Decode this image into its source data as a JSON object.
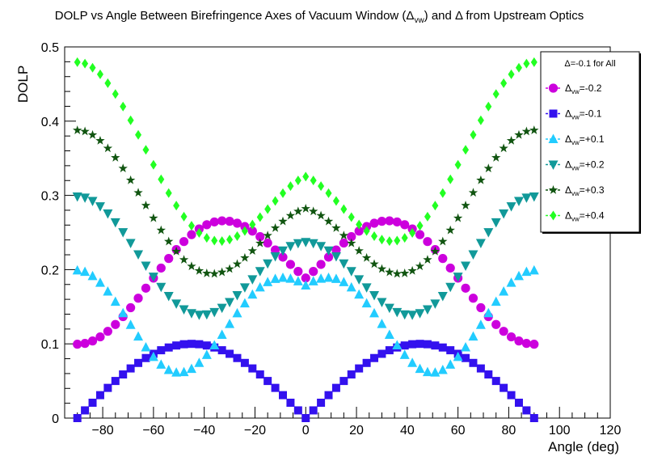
{
  "chart_data": {
    "type": "scatter",
    "title_parts": [
      "DOLP vs Angle Between Birefringence Axes of Vacuum Window (Δ",
      "vw",
      ") and Δ from Upstream Optics"
    ],
    "xlabel": "Angle (deg)",
    "ylabel": "DOLP",
    "xlim": [
      -95,
      120
    ],
    "ylim": [
      0,
      0.5
    ],
    "xticks": [
      -80,
      -60,
      -40,
      -20,
      0,
      20,
      40,
      60,
      80,
      100,
      120
    ],
    "yticks": [
      0,
      0.1,
      0.2,
      0.3,
      0.4,
      0.5
    ],
    "ytick_labels": [
      "0",
      "0.1",
      "0.2",
      "0.3",
      "0.4",
      "0.5"
    ],
    "grid": false,
    "legend_position": "top-right",
    "legend_header": "Δ=-0.1 for All",
    "x_range": {
      "start": -90,
      "end": 90,
      "step": 3
    },
    "series": [
      {
        "name_prefix": "Δ",
        "name_sub": "vw",
        "name_suffix": "=-0.2",
        "color": "#cc00dd",
        "marker": "circle",
        "values": [
          0.0995,
          0.1006,
          0.1039,
          0.1094,
          0.1169,
          0.1261,
          0.1367,
          0.1487,
          0.1615,
          0.175,
          0.1886,
          0.2021,
          0.215,
          0.227,
          0.2378,
          0.2471,
          0.2548,
          0.2605,
          0.2642,
          0.2657,
          0.2651,
          0.2625,
          0.258,
          0.2519,
          0.2444,
          0.2358,
          0.2265,
          0.2168,
          0.207,
          0.1976,
          0.1887,
          0.1976,
          0.207,
          0.2168,
          0.2265,
          0.2358,
          0.2444,
          0.2519,
          0.258,
          0.2625,
          0.2651,
          0.2657,
          0.2642,
          0.2605,
          0.2548,
          0.2471,
          0.2378,
          0.227,
          0.215,
          0.2021,
          0.1886,
          0.175,
          0.1615,
          0.1487,
          0.1367,
          0.1261,
          0.1169,
          0.1094,
          0.1039,
          0.1006,
          0.0995
        ]
      },
      {
        "name_prefix": "Δ",
        "name_sub": "vw",
        "name_suffix": "=-0.1",
        "color": "#3311ee",
        "marker": "square",
        "values": [
          0.0,
          0.0104,
          0.0207,
          0.0309,
          0.0407,
          0.05,
          0.0588,
          0.0669,
          0.0743,
          0.0809,
          0.0866,
          0.0914,
          0.0951,
          0.0978,
          0.0995,
          0.1,
          0.0995,
          0.0978,
          0.0951,
          0.0914,
          0.0866,
          0.0809,
          0.0743,
          0.0669,
          0.0588,
          0.05,
          0.0407,
          0.0309,
          0.0207,
          0.0104,
          0.0,
          0.0104,
          0.0207,
          0.0309,
          0.0407,
          0.05,
          0.0588,
          0.0669,
          0.0743,
          0.0809,
          0.0866,
          0.0914,
          0.0951,
          0.0978,
          0.0995,
          0.1,
          0.0995,
          0.0978,
          0.0951,
          0.0914,
          0.0866,
          0.0809,
          0.0743,
          0.0669,
          0.0588,
          0.05,
          0.0407,
          0.0309,
          0.0207,
          0.0104,
          0.0
        ]
      },
      {
        "name_prefix": "Δ",
        "name_sub": "vw",
        "name_suffix": "=+0.1",
        "color": "#22ccff",
        "marker": "triangle-up",
        "values": [
          0.199,
          0.197,
          0.1913,
          0.1823,
          0.1705,
          0.1567,
          0.1414,
          0.1256,
          0.1099,
          0.0953,
          0.0824,
          0.072,
          0.0648,
          0.0614,
          0.0619,
          0.0663,
          0.0743,
          0.0851,
          0.098,
          0.1122,
          0.1268,
          0.1412,
          0.1546,
          0.1664,
          0.176,
          0.1831,
          0.1875,
          0.189,
          0.1878,
          0.1842,
          0.1787,
          0.1842,
          0.1878,
          0.189,
          0.1875,
          0.1831,
          0.176,
          0.1664,
          0.1546,
          0.1412,
          0.1268,
          0.1122,
          0.098,
          0.0851,
          0.0743,
          0.0663,
          0.0619,
          0.0614,
          0.0648,
          0.072,
          0.0824,
          0.0953,
          0.1099,
          0.1256,
          0.1414,
          0.1567,
          0.1705,
          0.1823,
          0.1913,
          0.197,
          0.199
        ]
      },
      {
        "name_prefix": "Δ",
        "name_sub": "vw",
        "name_suffix": "=+0.2",
        "color": "#119999",
        "marker": "triangle-down",
        "values": [
          0.2985,
          0.297,
          0.2925,
          0.2853,
          0.2756,
          0.2638,
          0.2504,
          0.2358,
          0.2206,
          0.2053,
          0.1905,
          0.1767,
          0.1645,
          0.1543,
          0.1465,
          0.1414,
          0.1391,
          0.1397,
          0.1429,
          0.1486,
          0.1563,
          0.1656,
          0.176,
          0.187,
          0.198,
          0.2084,
          0.2178,
          0.2257,
          0.2317,
          0.2356,
          0.2372,
          0.2356,
          0.2317,
          0.2257,
          0.2178,
          0.2084,
          0.198,
          0.187,
          0.176,
          0.1656,
          0.1563,
          0.1486,
          0.1429,
          0.1397,
          0.1391,
          0.1414,
          0.1465,
          0.1543,
          0.1645,
          0.1767,
          0.1905,
          0.2053,
          0.2206,
          0.2358,
          0.2504,
          0.2638,
          0.2756,
          0.2853,
          0.2925,
          0.297,
          0.2985
        ]
      },
      {
        "name_prefix": "Δ",
        "name_sub": "vw",
        "name_suffix": "=+0.3",
        "color": "#115511",
        "marker": "star",
        "values": [
          0.3877,
          0.3861,
          0.3814,
          0.3737,
          0.3634,
          0.3508,
          0.3363,
          0.3204,
          0.3036,
          0.2864,
          0.2693,
          0.253,
          0.2379,
          0.2245,
          0.2133,
          0.2045,
          0.1984,
          0.195,
          0.1944,
          0.1965,
          0.2009,
          0.2075,
          0.2158,
          0.2253,
          0.2355,
          0.2459,
          0.256,
          0.265,
          0.2727,
          0.2785,
          0.2821,
          0.2785,
          0.2727,
          0.265,
          0.256,
          0.2459,
          0.2355,
          0.2253,
          0.2158,
          0.2075,
          0.2009,
          0.1965,
          0.1944,
          0.195,
          0.1984,
          0.2045,
          0.2133,
          0.2245,
          0.2379,
          0.253,
          0.2693,
          0.2864,
          0.3036,
          0.3204,
          0.3363,
          0.3508,
          0.3634,
          0.3737,
          0.3814,
          0.3861,
          0.3877
        ]
      },
      {
        "name_prefix": "Δ",
        "name_sub": "vw",
        "name_suffix": "=+0.4",
        "color": "#22ff22",
        "marker": "diamond",
        "values": [
          0.4794,
          0.4775,
          0.472,
          0.4631,
          0.4511,
          0.4365,
          0.4197,
          0.4012,
          0.3816,
          0.3614,
          0.3412,
          0.3216,
          0.3031,
          0.2862,
          0.2714,
          0.2591,
          0.2495,
          0.2428,
          0.2391,
          0.2384,
          0.2405,
          0.2451,
          0.252,
          0.2608,
          0.2707,
          0.2815,
          0.2925,
          0.303,
          0.3125,
          0.3201,
          0.3253,
          0.3201,
          0.3125,
          0.303,
          0.2925,
          0.2815,
          0.2707,
          0.2608,
          0.252,
          0.2451,
          0.2405,
          0.2384,
          0.2391,
          0.2428,
          0.2495,
          0.2591,
          0.2714,
          0.2862,
          0.3031,
          0.3216,
          0.3412,
          0.3614,
          0.3816,
          0.4012,
          0.4197,
          0.4365,
          0.4511,
          0.4631,
          0.472,
          0.4775,
          0.4794
        ]
      }
    ]
  }
}
